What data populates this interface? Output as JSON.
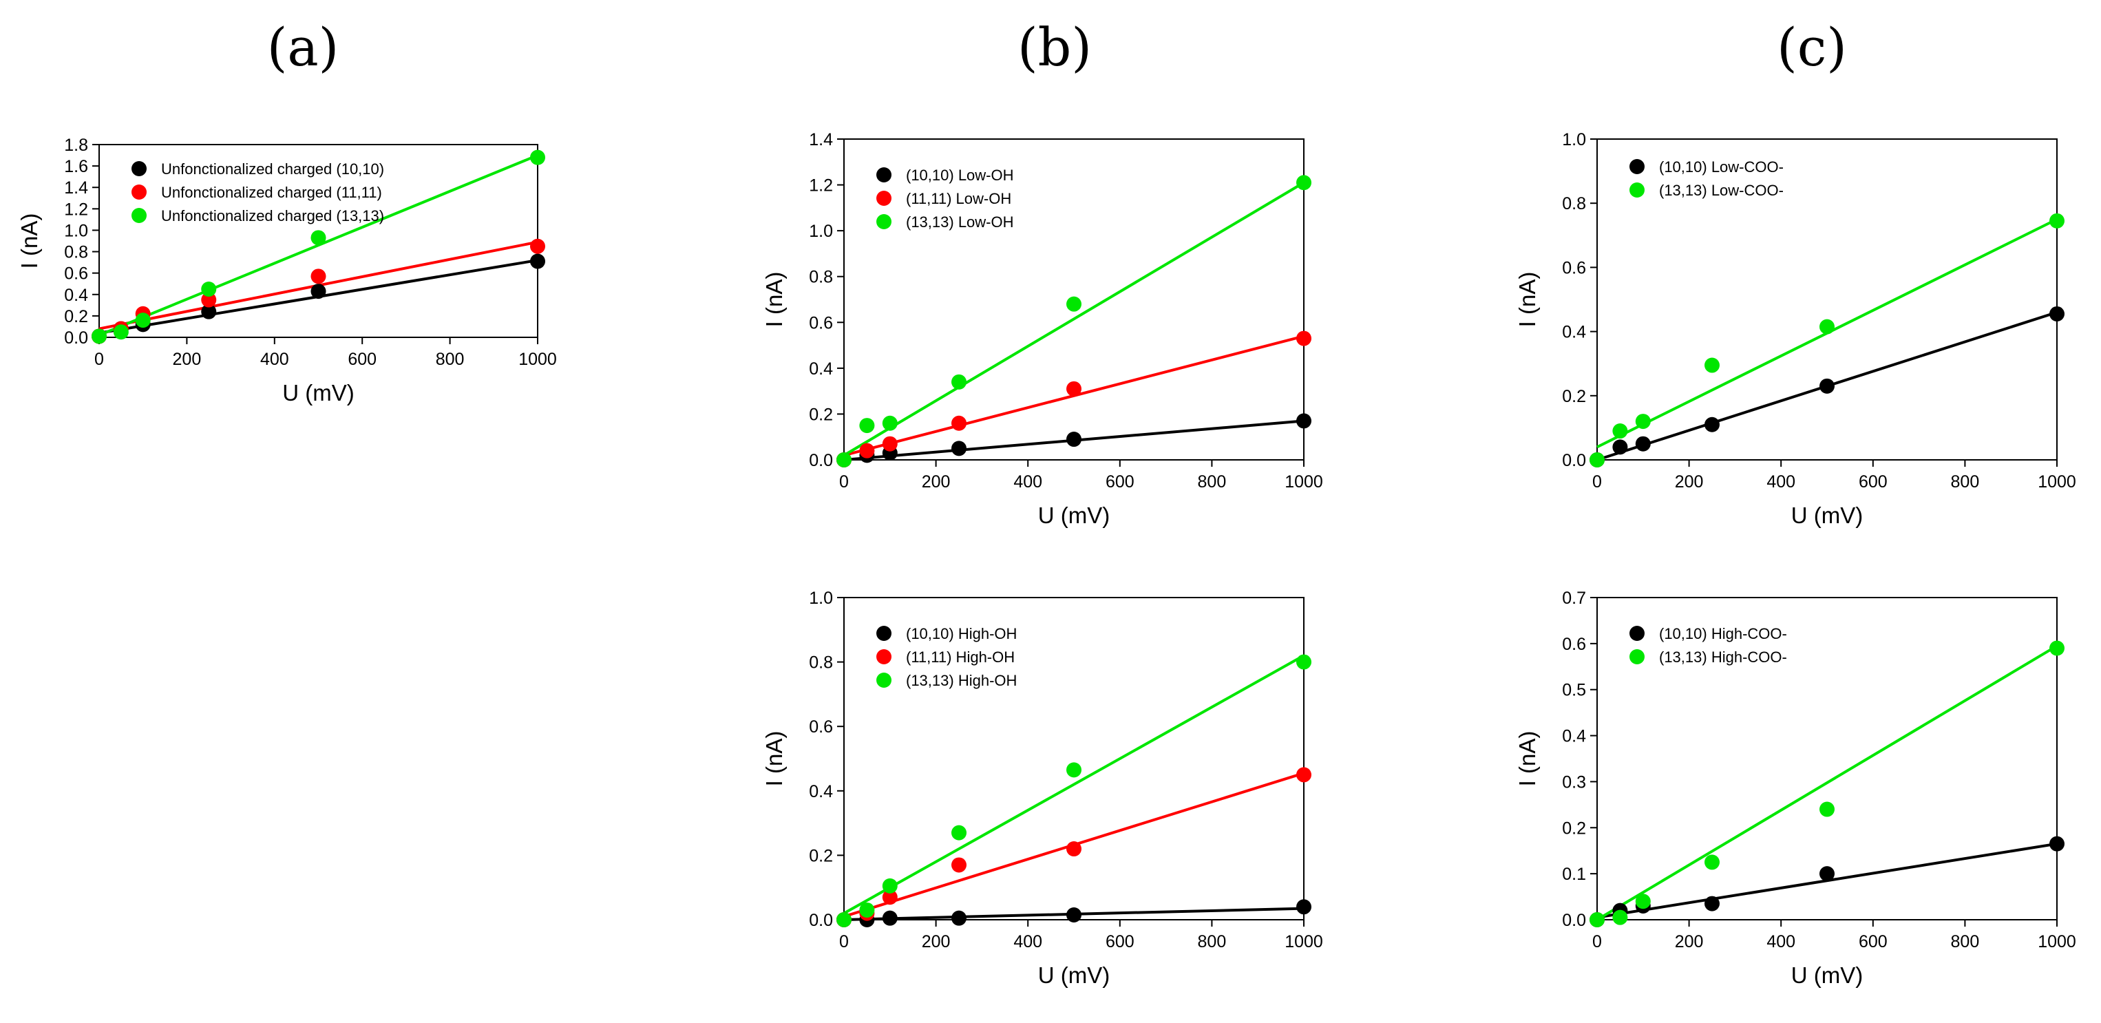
{
  "panel_labels": [
    "(a)",
    "(b)",
    "(c)"
  ],
  "colors": {
    "black": "#000000",
    "red": "#ff0000",
    "green": "#00e600"
  },
  "chart_data": [
    {
      "id": "a",
      "panel": "(a)",
      "type": "scatter",
      "title": "",
      "xlabel": "U (mV)",
      "ylabel": "I (nA)",
      "xlim": [
        0,
        1000
      ],
      "ylim": [
        0,
        1.8
      ],
      "xticks": [
        0,
        200,
        400,
        600,
        800,
        1000
      ],
      "yticks": [
        0.0,
        0.2,
        0.4,
        0.6,
        0.8,
        1.0,
        1.2,
        1.4,
        1.6,
        1.8
      ],
      "ytick_labels": [
        "0.0",
        "0.2",
        "0.4",
        "0.6",
        "0.8",
        "1.0",
        "1.2",
        "1.4",
        "1.6",
        "1.8"
      ],
      "grid": false,
      "legend_position": "top-left",
      "series": [
        {
          "name": "Unfonctionalized charged (10,10)",
          "color": "#000000",
          "x": [
            0,
            50,
            100,
            250,
            500,
            1000
          ],
          "y": [
            0.01,
            0.08,
            0.12,
            0.24,
            0.43,
            0.71
          ],
          "fit": [
            [
              0,
              0.04
            ],
            [
              1000,
              0.72
            ]
          ]
        },
        {
          "name": "Unfonctionalized charged (11,11)",
          "color": "#ff0000",
          "x": [
            0,
            50,
            100,
            250,
            500,
            1000
          ],
          "y": [
            0.01,
            0.08,
            0.22,
            0.35,
            0.57,
            0.85
          ],
          "fit": [
            [
              0,
              0.08
            ],
            [
              1000,
              0.89
            ]
          ]
        },
        {
          "name": "Unfonctionalized charged (13,13)",
          "color": "#00e600",
          "x": [
            0,
            50,
            100,
            250,
            500,
            1000
          ],
          "y": [
            0.01,
            0.05,
            0.16,
            0.45,
            0.93,
            1.68
          ],
          "fit": [
            [
              0,
              0.02
            ],
            [
              1000,
              1.7
            ]
          ]
        }
      ]
    },
    {
      "id": "b_top",
      "panel": "(b)",
      "type": "scatter",
      "title": "",
      "xlabel": "U (mV)",
      "ylabel": "I (nA)",
      "xlim": [
        0,
        1000
      ],
      "ylim": [
        0,
        1.4
      ],
      "xticks": [
        0,
        200,
        400,
        600,
        800,
        1000
      ],
      "yticks": [
        0.0,
        0.2,
        0.4,
        0.6,
        0.8,
        1.0,
        1.2,
        1.4
      ],
      "ytick_labels": [
        "0.0",
        "0.2",
        "0.4",
        "0.6",
        "0.8",
        "1.0",
        "1.2",
        "1.4"
      ],
      "grid": false,
      "legend_position": "top-left",
      "series": [
        {
          "name": "(10,10) Low-OH",
          "color": "#000000",
          "x": [
            0,
            50,
            100,
            250,
            500,
            1000
          ],
          "y": [
            0.0,
            0.02,
            0.03,
            0.05,
            0.09,
            0.17
          ],
          "fit": [
            [
              0,
              0.0
            ],
            [
              1000,
              0.17
            ]
          ]
        },
        {
          "name": "(11,11) Low-OH",
          "color": "#ff0000",
          "x": [
            0,
            50,
            100,
            250,
            500,
            1000
          ],
          "y": [
            0.0,
            0.04,
            0.07,
            0.16,
            0.31,
            0.53
          ],
          "fit": [
            [
              0,
              0.02
            ],
            [
              1000,
              0.54
            ]
          ]
        },
        {
          "name": "(13,13) Low-OH",
          "color": "#00e600",
          "x": [
            0,
            50,
            100,
            250,
            500,
            1000
          ],
          "y": [
            0.0,
            0.15,
            0.16,
            0.34,
            0.68,
            1.21
          ],
          "fit": [
            [
              0,
              0.02
            ],
            [
              1000,
              1.21
            ]
          ]
        }
      ]
    },
    {
      "id": "b_bottom",
      "panel": "(b)",
      "type": "scatter",
      "title": "",
      "xlabel": "U (mV)",
      "ylabel": "I (nA)",
      "xlim": [
        0,
        1000
      ],
      "ylim": [
        0,
        1.0
      ],
      "xticks": [
        0,
        200,
        400,
        600,
        800,
        1000
      ],
      "yticks": [
        0.0,
        0.2,
        0.4,
        0.6,
        0.8,
        1.0
      ],
      "ytick_labels": [
        "0.0",
        "0.2",
        "0.4",
        "0.6",
        "0.8",
        "1.0"
      ],
      "grid": false,
      "legend_position": "top-left",
      "series": [
        {
          "name": "(10,10) High-OH",
          "color": "#000000",
          "x": [
            0,
            50,
            100,
            250,
            500,
            1000
          ],
          "y": [
            0.0,
            0.0,
            0.005,
            0.005,
            0.015,
            0.04
          ],
          "fit": [
            [
              0,
              0.0
            ],
            [
              1000,
              0.035
            ]
          ]
        },
        {
          "name": "(11,11) High-OH",
          "color": "#ff0000",
          "x": [
            0,
            50,
            100,
            250,
            500,
            1000
          ],
          "y": [
            0.0,
            0.02,
            0.07,
            0.17,
            0.22,
            0.45
          ],
          "fit": [
            [
              0,
              0.01
            ],
            [
              1000,
              0.455
            ]
          ]
        },
        {
          "name": "(13,13) High-OH",
          "color": "#00e600",
          "x": [
            0,
            50,
            100,
            250,
            500,
            1000
          ],
          "y": [
            0.0,
            0.03,
            0.105,
            0.27,
            0.465,
            0.8
          ],
          "fit": [
            [
              0,
              0.02
            ],
            [
              1000,
              0.82
            ]
          ]
        }
      ]
    },
    {
      "id": "c_top",
      "panel": "(c)",
      "type": "scatter",
      "title": "",
      "xlabel": "U (mV)",
      "ylabel": "I (nA)",
      "xlim": [
        0,
        1000
      ],
      "ylim": [
        0,
        1.0
      ],
      "xticks": [
        0,
        200,
        400,
        600,
        800,
        1000
      ],
      "yticks": [
        0.0,
        0.2,
        0.4,
        0.6,
        0.8,
        1.0
      ],
      "ytick_labels": [
        "0.0",
        "0.2",
        "0.4",
        "0.6",
        "0.8",
        "1.0"
      ],
      "grid": false,
      "legend_position": "top-left",
      "series": [
        {
          "name": "(10,10) Low-COO-",
          "color": "#000000",
          "x": [
            0,
            50,
            100,
            250,
            500,
            1000
          ],
          "y": [
            0.0,
            0.04,
            0.05,
            0.11,
            0.23,
            0.455
          ],
          "fit": [
            [
              0,
              0.0
            ],
            [
              1000,
              0.46
            ]
          ]
        },
        {
          "name": "(13,13) Low-COO-",
          "color": "#00e600",
          "x": [
            0,
            50,
            100,
            250,
            500,
            1000
          ],
          "y": [
            0.0,
            0.09,
            0.12,
            0.295,
            0.415,
            0.745
          ],
          "fit": [
            [
              0,
              0.04
            ],
            [
              1000,
              0.75
            ]
          ]
        }
      ]
    },
    {
      "id": "c_bottom",
      "panel": "(c)",
      "type": "scatter",
      "title": "",
      "xlabel": "U (mV)",
      "ylabel": "I (nA)",
      "xlim": [
        0,
        1000
      ],
      "ylim": [
        0,
        0.7
      ],
      "xticks": [
        0,
        200,
        400,
        600,
        800,
        1000
      ],
      "yticks": [
        0.0,
        0.1,
        0.2,
        0.3,
        0.4,
        0.5,
        0.6,
        0.7
      ],
      "ytick_labels": [
        "0.0",
        "0.1",
        "0.2",
        "0.3",
        "0.4",
        "0.5",
        "0.6",
        "0.7"
      ],
      "grid": false,
      "legend_position": "top-left",
      "series": [
        {
          "name": "(10,10) High-COO-",
          "color": "#000000",
          "x": [
            0,
            50,
            100,
            250,
            500,
            1000
          ],
          "y": [
            0.0,
            0.02,
            0.03,
            0.035,
            0.1,
            0.165
          ],
          "fit": [
            [
              0,
              0.005
            ],
            [
              1000,
              0.165
            ]
          ]
        },
        {
          "name": "(13,13) High-COO-",
          "color": "#00e600",
          "x": [
            0,
            50,
            100,
            250,
            500,
            1000
          ],
          "y": [
            0.0,
            0.005,
            0.04,
            0.125,
            0.24,
            0.59
          ],
          "fit": [
            [
              0,
              0.0
            ],
            [
              1000,
              0.595
            ]
          ]
        }
      ]
    }
  ]
}
